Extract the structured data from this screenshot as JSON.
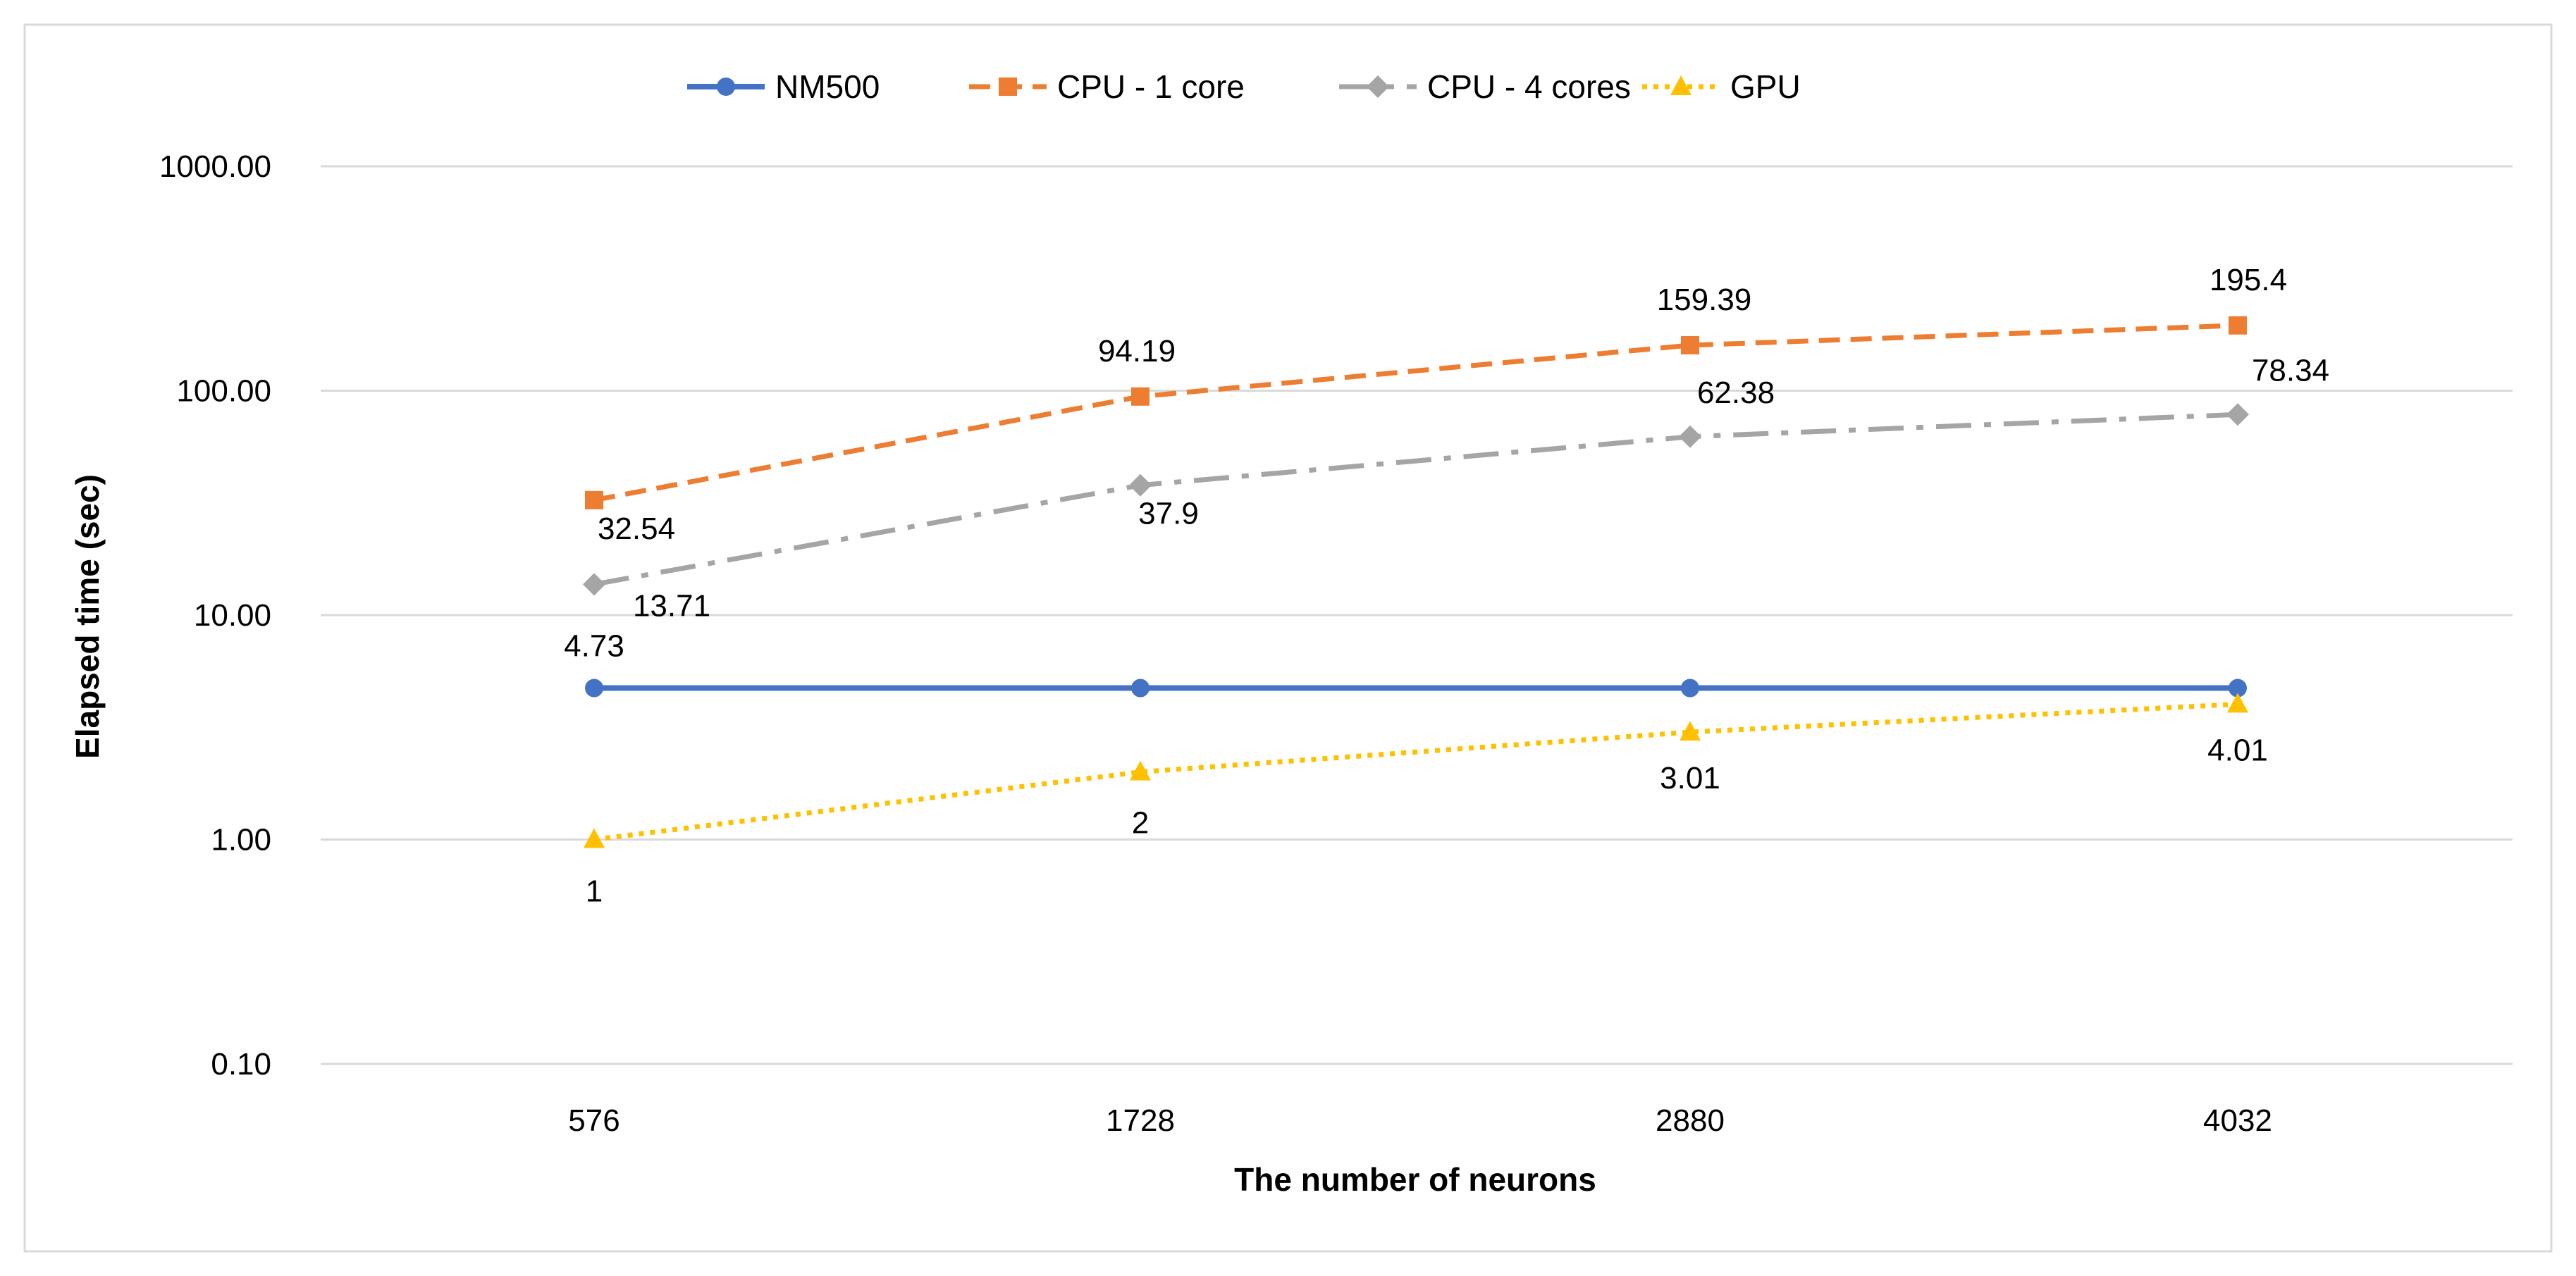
{
  "chart_data": {
    "type": "line",
    "title": "",
    "xlabel": "The number of neurons",
    "ylabel": "Elapsed time (sec)",
    "yscale": "log",
    "ylim": [
      0.1,
      1000
    ],
    "categories": [
      "576",
      "1728",
      "2880",
      "4032"
    ],
    "yticks": [
      0.1,
      1,
      10,
      100,
      1000
    ],
    "ytick_labels": [
      "0.10",
      "1.00",
      "10.00",
      "100.00",
      "1000.00"
    ],
    "grid": true,
    "legend_position": "top",
    "series": [
      {
        "name": "NM500",
        "color": "#4472C4",
        "line_style": "solid",
        "marker": "circle",
        "values": [
          4.73,
          4.73,
          4.73,
          4.73
        ],
        "data_labels": [
          "4.73",
          "",
          "",
          ""
        ]
      },
      {
        "name": "CPU - 1 core",
        "color": "#ED7D31",
        "line_style": "dash",
        "marker": "square",
        "values": [
          32.54,
          94.19,
          159.39,
          195.4
        ],
        "data_labels": [
          "32.54",
          "94.19",
          "159.39",
          "195.4"
        ]
      },
      {
        "name": "CPU - 4 cores",
        "color": "#A5A5A5",
        "line_style": "dash-dot",
        "marker": "diamond",
        "values": [
          13.71,
          37.9,
          62.38,
          78.34
        ],
        "data_labels": [
          "13.71",
          "37.9",
          "62.38",
          "78.34"
        ]
      },
      {
        "name": "GPU",
        "color": "#FFC000",
        "line_style": "dot",
        "marker": "triangle",
        "values": [
          1,
          2,
          3.01,
          4.01
        ],
        "data_labels": [
          "1",
          "2",
          "3.01",
          "4.01"
        ]
      }
    ]
  }
}
